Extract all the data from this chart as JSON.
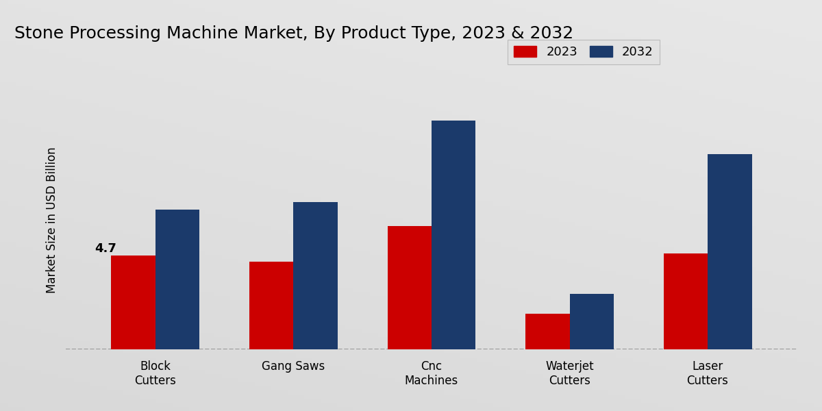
{
  "title": "Stone Processing Machine Market, By Product Type, 2023 & 2032",
  "ylabel": "Market Size in USD Billion",
  "categories": [
    "Block\nCutters",
    "Gang Saws",
    "Cnc\nMachines",
    "Waterjet\nCutters",
    "Laser\nCutters"
  ],
  "values_2023": [
    4.7,
    4.4,
    6.2,
    1.8,
    4.8
  ],
  "values_2032": [
    7.0,
    7.4,
    11.5,
    2.8,
    9.8
  ],
  "color_2023": "#cc0000",
  "color_2032": "#1b3a6b",
  "annotation_text": "4.7",
  "annotation_bar": 0,
  "background_top": "#d8d8d8",
  "background_bottom": "#e8e8e8",
  "bar_width": 0.32,
  "legend_labels": [
    "2023",
    "2032"
  ],
  "ylim": [
    0,
    13
  ],
  "dashed_line_y": 0,
  "title_fontsize": 18,
  "legend_fontsize": 13,
  "tick_fontsize": 12,
  "ylabel_fontsize": 12
}
